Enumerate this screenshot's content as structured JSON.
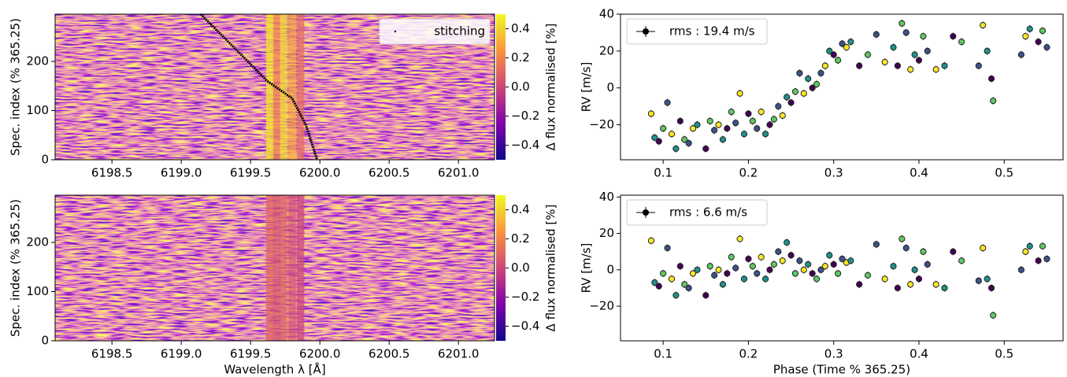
{
  "chart_data": [
    {
      "type": "heatmap",
      "ylabel": "Spec. index (% 365.25)",
      "xlim": [
        6198.09,
        6201.26
      ],
      "ylim": [
        0,
        296
      ],
      "xticks": [
        6198.5,
        {
          "value": 6199.0,
          "label": "6199.0"
        },
        6199.5,
        {
          "value": 6200.0,
          "label": "6200.0"
        },
        6200.5,
        {
          "value": 6201.0,
          "label": "6201.0"
        }
      ],
      "yticks": [
        0,
        100,
        200
      ],
      "clim": [
        -0.5,
        0.5
      ],
      "cticks": [
        {
          "value": -0.4,
          "label": "−0.4"
        },
        {
          "value": -0.2,
          "label": "−0.2"
        },
        {
          "value": 0.0,
          "label": "0.0"
        },
        0.2,
        0.4
      ],
      "clabel": "Δ flux normalised [%]",
      "cmap": [
        "#0d0887",
        "#7e03a8",
        "#cc4778",
        "#f89540",
        "#f0f921"
      ],
      "columns": {
        "x": [
          6199.64,
          6199.69,
          6199.74,
          6199.8,
          6199.86
        ],
        "values": [
          0.45,
          0.2,
          0.42,
          0.3,
          0.12
        ]
      },
      "stitching": {
        "name": "stitching",
        "color": "#000000",
        "x": [
          6199.14,
          6199.41,
          6199.62,
          6199.8,
          6199.9,
          6199.98
        ],
        "y": [
          296,
          220,
          160,
          125,
          70,
          0
        ]
      }
    },
    {
      "type": "scatter",
      "ylabel": "RV [m/s]",
      "xlim": [
        0.05,
        0.569
      ],
      "ylim": [
        -39,
        40
      ],
      "xticks": [
        0.1,
        0.2,
        0.3,
        0.4,
        0.5
      ],
      "yticks": [
        {
          "value": -20,
          "label": "−20"
        },
        0,
        20,
        40
      ],
      "cmap": [
        "#fde725",
        "#5ec962",
        "#21918c",
        "#3b528b",
        "#440154"
      ],
      "series": [
        {
          "name": "rms : 19.4 m/s",
          "color": "#000000",
          "yerr": 2,
          "x": [
            0.086,
            0.09,
            0.095,
            0.1,
            0.105,
            0.11,
            0.115,
            0.12,
            0.125,
            0.13,
            0.135,
            0.14,
            0.15,
            0.155,
            0.16,
            0.165,
            0.17,
            0.175,
            0.18,
            0.185,
            0.19,
            0.195,
            0.2,
            0.205,
            0.21,
            0.215,
            0.22,
            0.225,
            0.23,
            0.235,
            0.24,
            0.245,
            0.25,
            0.255,
            0.26,
            0.265,
            0.27,
            0.275,
            0.28,
            0.285,
            0.29,
            0.295,
            0.3,
            0.305,
            0.31,
            0.315,
            0.32,
            0.33,
            0.34,
            0.35,
            0.36,
            0.37,
            0.375,
            0.38,
            0.385,
            0.39,
            0.395,
            0.4,
            0.405,
            0.41,
            0.42,
            0.43,
            0.44,
            0.45,
            0.47,
            0.475,
            0.48,
            0.485,
            0.487,
            0.52,
            0.525,
            0.53,
            0.54,
            0.545,
            0.55
          ],
          "values": [
            -14,
            -27,
            -29,
            -22,
            -8,
            -25,
            -33,
            -18,
            -28,
            -30,
            -22,
            -20,
            -33,
            -18,
            -23,
            -20,
            -28,
            -22,
            -13,
            -19,
            -3,
            -25,
            -14,
            -18,
            -22,
            -13,
            -25,
            -20,
            -17,
            -10,
            -15,
            -5,
            -8,
            -2,
            8,
            -3,
            5,
            0,
            2,
            8,
            12,
            20,
            18,
            15,
            24,
            22,
            25,
            12,
            18,
            29,
            14,
            22,
            12,
            35,
            30,
            10,
            18,
            15,
            28,
            20,
            10,
            12,
            28,
            25,
            12,
            34,
            20,
            5,
            -7,
            18,
            28,
            32,
            25,
            31,
            22
          ]
        }
      ]
    },
    {
      "type": "heatmap",
      "ylabel": "Spec. index (% 365.25)",
      "xlabel": "Wavelength λ [Å]",
      "xlim": [
        6198.09,
        6201.26
      ],
      "ylim": [
        0,
        296
      ],
      "xticks": [
        6198.5,
        {
          "value": 6199.0,
          "label": "6199.0"
        },
        6199.5,
        {
          "value": 6200.0,
          "label": "6200.0"
        },
        6200.5,
        {
          "value": 6201.0,
          "label": "6201.0"
        }
      ],
      "yticks": [
        0,
        100,
        200
      ],
      "clim": [
        -0.5,
        0.5
      ],
      "cticks": [
        {
          "value": -0.4,
          "label": "−0.4"
        },
        {
          "value": -0.2,
          "label": "−0.2"
        },
        {
          "value": 0.0,
          "label": "0.0"
        },
        0.2,
        0.4
      ],
      "clabel": "Δ flux normalised [%]",
      "cmap": [
        "#0d0887",
        "#7e03a8",
        "#cc4778",
        "#f89540",
        "#f0f921"
      ],
      "columns": {
        "x": [
          6199.64,
          6199.69,
          6199.74,
          6199.8,
          6199.86
        ],
        "values": [
          0.1,
          0.05,
          0.1,
          0.05,
          0.0
        ]
      }
    },
    {
      "type": "scatter",
      "ylabel": "RV [m/s]",
      "xlabel": "Phase (Time % 365.25)",
      "xlim": [
        0.05,
        0.569
      ],
      "ylim": [
        -39,
        41
      ],
      "xticks": [
        0.1,
        0.2,
        0.3,
        0.4,
        0.5
      ],
      "yticks": [
        {
          "value": -20,
          "label": "−20"
        },
        0,
        20,
        40
      ],
      "cmap": [
        "#fde725",
        "#5ec962",
        "#21918c",
        "#3b528b",
        "#440154"
      ],
      "series": [
        {
          "name": "rms : 6.6 m/s",
          "color": "#000000",
          "yerr": 2,
          "x": [
            0.086,
            0.09,
            0.095,
            0.1,
            0.105,
            0.11,
            0.115,
            0.12,
            0.125,
            0.13,
            0.135,
            0.14,
            0.15,
            0.155,
            0.16,
            0.165,
            0.17,
            0.175,
            0.18,
            0.185,
            0.19,
            0.195,
            0.2,
            0.205,
            0.21,
            0.215,
            0.22,
            0.225,
            0.23,
            0.235,
            0.24,
            0.245,
            0.25,
            0.255,
            0.26,
            0.265,
            0.27,
            0.275,
            0.28,
            0.285,
            0.29,
            0.295,
            0.3,
            0.305,
            0.31,
            0.315,
            0.32,
            0.33,
            0.34,
            0.35,
            0.36,
            0.37,
            0.375,
            0.38,
            0.385,
            0.39,
            0.395,
            0.4,
            0.405,
            0.41,
            0.42,
            0.43,
            0.44,
            0.45,
            0.47,
            0.475,
            0.48,
            0.485,
            0.487,
            0.52,
            0.525,
            0.53,
            0.54,
            0.545,
            0.55
          ],
          "values": [
            16,
            -7,
            -9,
            -2,
            12,
            -5,
            -14,
            2,
            -8,
            -10,
            -2,
            0,
            -14,
            2,
            -3,
            0,
            -8,
            -2,
            7,
            1,
            17,
            -5,
            6,
            2,
            -2,
            7,
            -5,
            0,
            3,
            10,
            5,
            15,
            8,
            -2,
            5,
            0,
            3,
            -2,
            -5,
            0,
            2,
            8,
            3,
            -2,
            6,
            4,
            5,
            -8,
            -3,
            14,
            -5,
            2,
            -10,
            17,
            12,
            -8,
            0,
            -5,
            10,
            3,
            -8,
            -10,
            10,
            5,
            -6,
            12,
            -5,
            -10,
            -25,
            0,
            10,
            13,
            5,
            13,
            6
          ]
        }
      ]
    }
  ]
}
